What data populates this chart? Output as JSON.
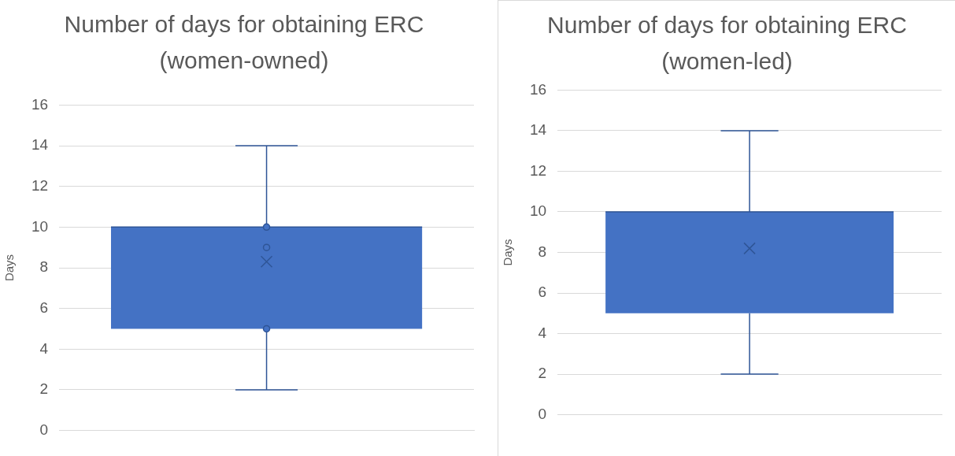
{
  "chart_data": [
    {
      "type": "box",
      "title": "Number of days for obtaining ERC (women-owned)",
      "ylabel": "Days",
      "categories": [
        null
      ],
      "color": "#4472c4",
      "boxes": [
        {
          "low": 2,
          "q1": 5,
          "median": 10,
          "q3": 10,
          "high": 14,
          "mean": 8.3,
          "outliers": [
            10,
            9,
            5
          ]
        }
      ],
      "ylim": [
        0,
        16
      ],
      "yticks": [
        0,
        2,
        4,
        6,
        8,
        10,
        12,
        14,
        16
      ],
      "grid": "y",
      "legend": false
    },
    {
      "type": "box",
      "title": "Number of days for obtaining ERC (women-led)",
      "ylabel": "Days",
      "categories": [
        null
      ],
      "color": "#4472c4",
      "boxes": [
        {
          "low": 2,
          "q1": 5,
          "median": 10,
          "q3": 10,
          "high": 14,
          "mean": 8.2
        }
      ],
      "ylim": [
        0,
        16
      ],
      "yticks": [
        0,
        2,
        4,
        6,
        8,
        10,
        12,
        14,
        16
      ],
      "grid": "y",
      "legend": false
    }
  ]
}
